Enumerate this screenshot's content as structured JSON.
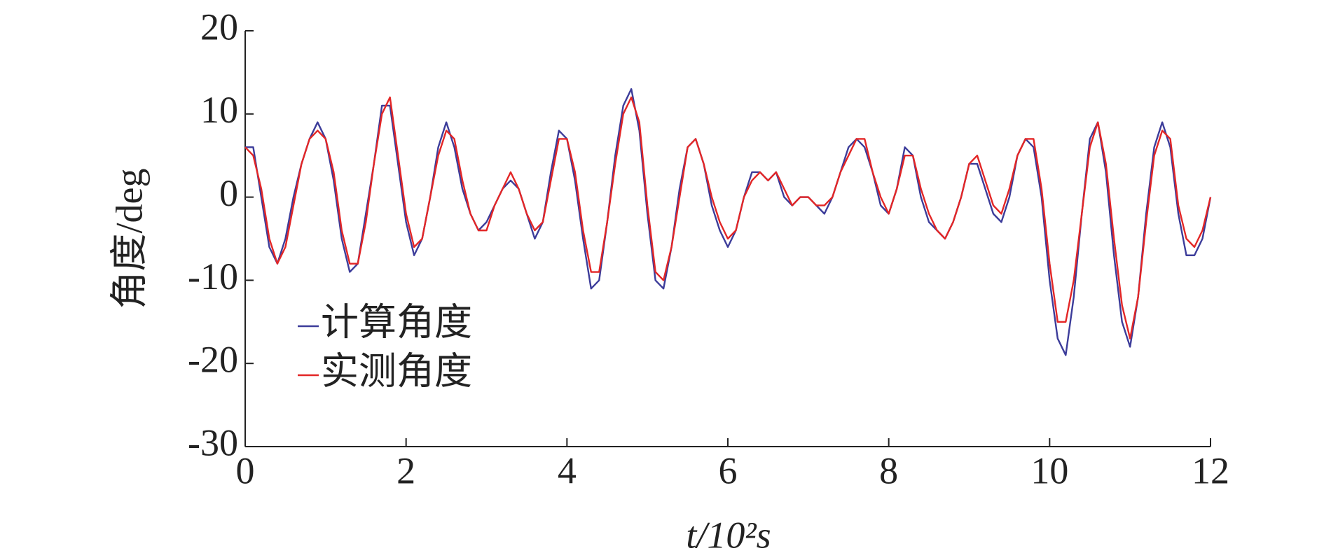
{
  "chart_data": {
    "type": "line",
    "xlabel": "t/10²s",
    "ylabel": "角度/deg",
    "x": [
      0,
      0.1,
      0.2,
      0.3,
      0.4,
      0.5,
      0.6,
      0.7,
      0.8,
      0.9,
      1,
      1.1,
      1.2,
      1.3,
      1.4,
      1.5,
      1.6,
      1.7,
      1.8,
      1.9,
      2,
      2.1,
      2.2,
      2.3,
      2.4,
      2.5,
      2.6,
      2.7,
      2.8,
      2.9,
      3,
      3.1,
      3.2,
      3.3,
      3.4,
      3.5,
      3.6,
      3.7,
      3.8,
      3.9,
      4,
      4.1,
      4.2,
      4.3,
      4.4,
      4.5,
      4.6,
      4.7,
      4.8,
      4.9,
      5,
      5.1,
      5.2,
      5.3,
      5.4,
      5.5,
      5.6,
      5.7,
      5.8,
      5.9,
      6,
      6.1,
      6.2,
      6.3,
      6.4,
      6.5,
      6.6,
      6.7,
      6.8,
      6.9,
      7,
      7.1,
      7.2,
      7.3,
      7.4,
      7.5,
      7.6,
      7.7,
      7.8,
      7.9,
      8,
      8.1,
      8.2,
      8.3,
      8.4,
      8.5,
      8.6,
      8.7,
      8.8,
      8.9,
      9,
      9.1,
      9.2,
      9.3,
      9.4,
      9.5,
      9.6,
      9.7,
      9.8,
      9.9,
      10,
      10.1,
      10.2,
      10.3,
      10.4,
      10.5,
      10.6,
      10.7,
      10.8,
      10.9,
      11,
      11.1,
      11.2,
      11.3,
      11.4,
      11.5,
      11.6,
      11.7,
      11.8,
      11.9,
      12
    ],
    "series": [
      {
        "name": "计算角度",
        "color": "#3c3c9a",
        "values": [
          6,
          6,
          0,
          -6,
          -8,
          -5,
          0,
          4,
          7,
          9,
          7,
          2,
          -5,
          -9,
          -8,
          -2,
          4,
          11,
          11,
          4,
          -3,
          -7,
          -5,
          0,
          6,
          9,
          6,
          1,
          -2,
          -4,
          -3,
          -1,
          1,
          2,
          1,
          -2,
          -5,
          -3,
          3,
          8,
          7,
          2,
          -5,
          -11,
          -10,
          -3,
          5,
          11,
          13,
          8,
          -2,
          -10,
          -11,
          -6,
          1,
          6,
          7,
          4,
          -1,
          -4,
          -6,
          -4,
          0,
          3,
          3,
          2,
          3,
          0,
          -1,
          0,
          0,
          -1,
          -2,
          0,
          3,
          6,
          7,
          6,
          3,
          -1,
          -2,
          1,
          6,
          5,
          0,
          -3,
          -4,
          -5,
          -3,
          0,
          4,
          4,
          1,
          -2,
          -3,
          0,
          5,
          7,
          6,
          0,
          -10,
          -17,
          -19,
          -12,
          -2,
          7,
          9,
          3,
          -7,
          -15,
          -18,
          -12,
          -2,
          6,
          9,
          6,
          -2,
          -7,
          -7,
          -5,
          0
        ]
      },
      {
        "name": "实测角度",
        "color": "#e32626",
        "values": [
          6,
          5,
          1,
          -5,
          -8,
          -6,
          -1,
          4,
          7,
          8,
          7,
          3,
          -4,
          -8,
          -8,
          -3,
          4,
          10,
          12,
          5,
          -2,
          -6,
          -5,
          0,
          5,
          8,
          7,
          2,
          -2,
          -4,
          -4,
          -1,
          1,
          3,
          1,
          -2,
          -4,
          -3,
          2,
          7,
          7,
          3,
          -4,
          -9,
          -9,
          -3,
          4,
          10,
          12,
          9,
          -1,
          -9,
          -10,
          -6,
          0,
          6,
          7,
          4,
          0,
          -3,
          -5,
          -4,
          0,
          2,
          3,
          2,
          3,
          1,
          -1,
          0,
          0,
          -1,
          -1,
          0,
          3,
          5,
          7,
          7,
          3,
          0,
          -2,
          1,
          5,
          5,
          1,
          -2,
          -4,
          -5,
          -3,
          0,
          4,
          5,
          2,
          -1,
          -2,
          1,
          5,
          7,
          7,
          1,
          -8,
          -15,
          -15,
          -10,
          -2,
          6,
          9,
          4,
          -5,
          -13,
          -17,
          -12,
          -3,
          5,
          8,
          7,
          -1,
          -5,
          -6,
          -4,
          0
        ]
      }
    ],
    "xlim": [
      0,
      12
    ],
    "xticks": [
      0,
      2,
      4,
      6,
      8,
      10,
      12
    ],
    "ylim": [
      -30,
      20
    ],
    "yticks": [
      -30,
      -20,
      -10,
      0,
      10,
      20
    ]
  }
}
